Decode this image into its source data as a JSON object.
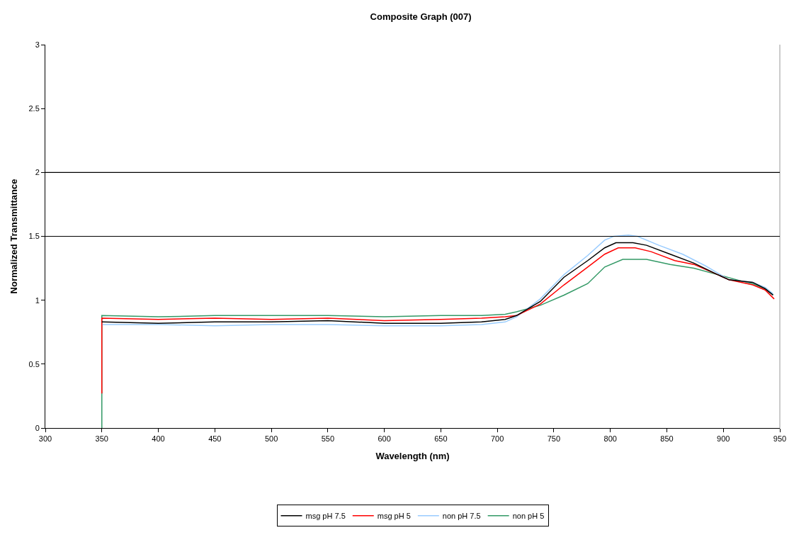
{
  "chart_data": {
    "type": "line",
    "title": "Composite Graph (007)",
    "xlabel": "Wavelength (nm)",
    "ylabel": "Normalized Transmittance",
    "xlim": [
      300,
      950
    ],
    "xticks": [
      300,
      350,
      400,
      450,
      500,
      550,
      600,
      650,
      700,
      750,
      800,
      850,
      900,
      950
    ],
    "ylim": [
      0,
      3
    ],
    "yticks": [
      0,
      0.5,
      1,
      1.5,
      2,
      2.5,
      3
    ],
    "grid": false,
    "legend": "bottom",
    "marker": "none",
    "line_style": "solid",
    "ref_lines": [
      {
        "axis": "y",
        "value": 1.5,
        "color": "#000000"
      },
      {
        "axis": "y",
        "value": 2,
        "color": "#000000"
      }
    ],
    "series": [
      {
        "name": "msg pH 7.5",
        "color": "#000000",
        "x": [
          350,
          400,
          450,
          500,
          550,
          600,
          650,
          686,
          707,
          717,
          738,
          759,
          780,
          795,
          805,
          820,
          832,
          853,
          874,
          895,
          905,
          926,
          937,
          944
        ],
        "values": [
          0.83,
          0.82,
          0.83,
          0.83,
          0.84,
          0.82,
          0.82,
          0.83,
          0.85,
          0.88,
          0.99,
          1.18,
          1.31,
          1.41,
          1.45,
          1.45,
          1.43,
          1.36,
          1.29,
          1.2,
          1.16,
          1.14,
          1.09,
          1.04
        ]
      },
      {
        "name": "msg pH 5",
        "color": "#ff0000",
        "x": [
          350,
          350,
          400,
          450,
          500,
          550,
          600,
          650,
          686,
          707,
          717,
          738,
          759,
          780,
          795,
          807,
          822,
          836,
          857,
          874,
          895,
          905,
          926,
          937,
          945
        ],
        "values": [
          0.27,
          0.86,
          0.85,
          0.86,
          0.85,
          0.86,
          0.84,
          0.85,
          0.86,
          0.87,
          0.88,
          0.97,
          1.12,
          1.26,
          1.36,
          1.41,
          1.41,
          1.38,
          1.31,
          1.28,
          1.2,
          1.16,
          1.12,
          1.08,
          1.01
        ]
      },
      {
        "name": "non pH 7.5",
        "color": "#99ccff",
        "x": [
          350,
          400,
          450,
          500,
          550,
          600,
          650,
          686,
          707,
          717,
          738,
          759,
          780,
          795,
          803,
          816,
          824,
          843,
          864,
          884,
          905,
          926,
          937,
          944
        ],
        "values": [
          0.81,
          0.81,
          0.8,
          0.81,
          0.81,
          0.8,
          0.8,
          0.81,
          0.83,
          0.87,
          1.01,
          1.2,
          1.35,
          1.47,
          1.5,
          1.51,
          1.5,
          1.43,
          1.36,
          1.27,
          1.16,
          1.14,
          1.1,
          1.05
        ]
      },
      {
        "name": "non pH 5",
        "color": "#339966",
        "x": [
          350,
          350,
          400,
          450,
          500,
          550,
          600,
          650,
          686,
          707,
          717,
          738,
          759,
          780,
          795,
          811,
          832,
          853,
          874,
          895,
          916,
          926,
          937,
          944
        ],
        "values": [
          0,
          0.88,
          0.87,
          0.88,
          0.88,
          0.88,
          0.87,
          0.88,
          0.88,
          0.89,
          0.91,
          0.96,
          1.04,
          1.13,
          1.26,
          1.32,
          1.32,
          1.28,
          1.25,
          1.2,
          1.15,
          1.13,
          1.09,
          1.04
        ]
      }
    ]
  }
}
